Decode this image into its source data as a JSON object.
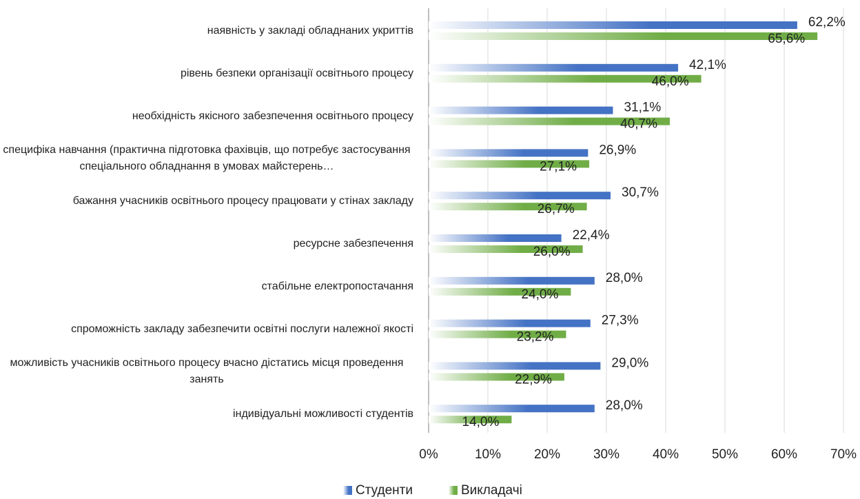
{
  "chart_data": {
    "type": "barh",
    "categories": [
      "наявність у закладі обладнаних укриттів",
      "рівень безпеки організації освітнього процесу",
      "необхідність якісного забезпечення освітнього процесу",
      "специфіка навчання (практична підготовка фахівців, що потребує застосування спеціального обладнання в умовах майстерень…",
      "бажання учасників освітнього процесу працювати у стінах закладу",
      "ресурсне забезпечення",
      "стабільне електропостачання",
      "спроможність закладу забезпечити освітні послуги належної якості",
      "можливість учасників освітнього процесу вчасно дістатись місця проведення занять",
      "індивідуальні можливості студентів"
    ],
    "series": [
      {
        "name": "Студенти",
        "color": "#4472c4",
        "values": [
          62.2,
          42.1,
          31.1,
          26.9,
          30.7,
          22.4,
          28.0,
          27.3,
          29.0,
          28.0
        ],
        "value_labels": [
          "62,2%",
          "42,1%",
          "31,1%",
          "26,9%",
          "30,7%",
          "22,4%",
          "28,0%",
          "27,3%",
          "29,0%",
          "28,0%"
        ]
      },
      {
        "name": "Викладачі",
        "color": "#70ad47",
        "values": [
          65.6,
          46.0,
          40.7,
          27.1,
          26.7,
          26.0,
          24.0,
          23.2,
          22.9,
          14.0
        ],
        "value_labels": [
          "65,6%",
          "46,0%",
          "40,7%",
          "27,1%",
          "26,7%",
          "26,0%",
          "24,0%",
          "23,2%",
          "22,9%",
          "14,0%"
        ]
      }
    ],
    "xlim": [
      0,
      70
    ],
    "xticks": [
      {
        "value": 0,
        "label": "0%"
      },
      {
        "value": 10,
        "label": "10%"
      },
      {
        "value": 20,
        "label": "20%"
      },
      {
        "value": 30,
        "label": "30%"
      },
      {
        "value": 40,
        "label": "40%"
      },
      {
        "value": 50,
        "label": "50%"
      },
      {
        "value": 60,
        "label": "60%"
      },
      {
        "value": 70,
        "label": "70%"
      }
    ],
    "grid": true,
    "legend": "bottom"
  }
}
